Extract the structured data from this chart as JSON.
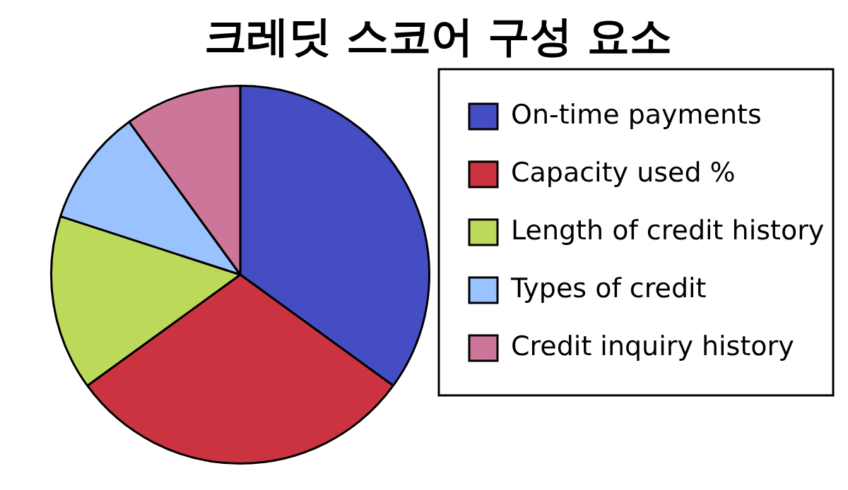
{
  "chart_data": {
    "type": "pie",
    "title": "크레딧 스코어 구성 요소",
    "categories": [
      "On-time payments",
      "Capacity used %",
      "Length of credit history",
      "Types of credit",
      "Credit inquiry history"
    ],
    "values": [
      35,
      30,
      15,
      10,
      10
    ],
    "colors": [
      "#444dc4",
      "#cc3340",
      "#bcd95a",
      "#99c2ff",
      "#cc7799"
    ],
    "legend": "right"
  }
}
